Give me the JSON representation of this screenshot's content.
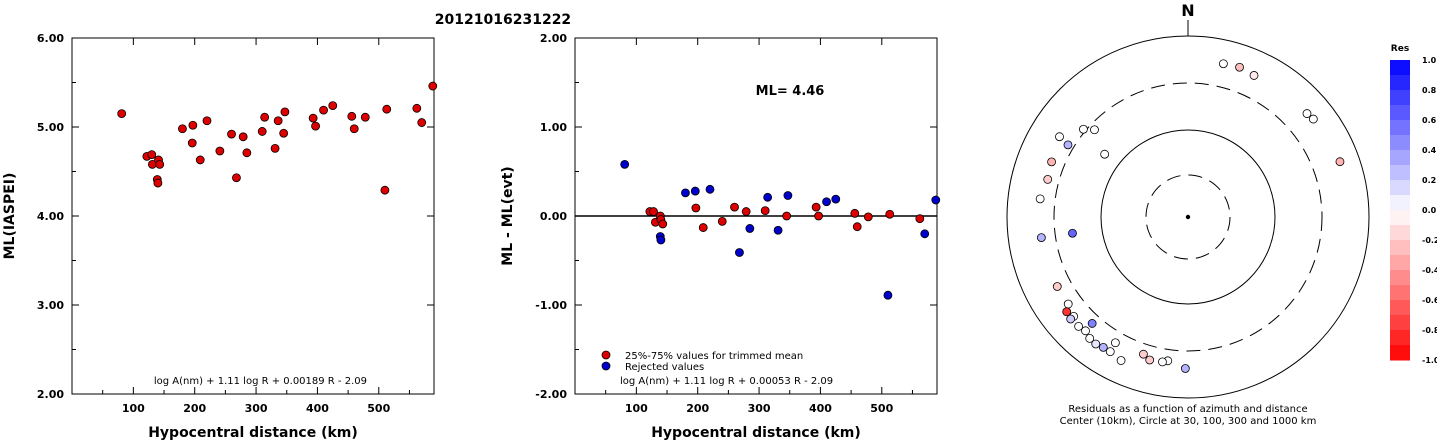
{
  "event_title": "20121016231222",
  "chart_data": [
    {
      "type": "scatter",
      "ylabel": "ML(IASPEI)",
      "xlabel": "Hypocentral distance (km)",
      "xlim": [
        0,
        590
      ],
      "ylim": [
        2.0,
        6.0
      ],
      "x_ticks": [
        "100",
        "200",
        "300",
        "400",
        "500"
      ],
      "y_ticks": [
        "2.00",
        "3.00",
        "4.00",
        "5.00",
        "6.00"
      ],
      "formula": "log A(nm) + 1.11 log R + 0.00189 R - 2.09",
      "point_color": "#dd0000",
      "points": [
        [
          81,
          5.15
        ],
        [
          122,
          4.67
        ],
        [
          130,
          4.69
        ],
        [
          131,
          4.58
        ],
        [
          139,
          4.41
        ],
        [
          140,
          4.37
        ],
        [
          141,
          4.63
        ],
        [
          143,
          4.58
        ],
        [
          180,
          4.98
        ],
        [
          196,
          4.82
        ],
        [
          197,
          5.02
        ],
        [
          209,
          4.63
        ],
        [
          220,
          5.07
        ],
        [
          241,
          4.73
        ],
        [
          260,
          4.92
        ],
        [
          268,
          4.43
        ],
        [
          279,
          4.89
        ],
        [
          285,
          4.71
        ],
        [
          310,
          4.95
        ],
        [
          314,
          5.11
        ],
        [
          331,
          4.76
        ],
        [
          336,
          5.07
        ],
        [
          345,
          4.93
        ],
        [
          347,
          5.17
        ],
        [
          393,
          5.1
        ],
        [
          397,
          5.01
        ],
        [
          410,
          5.19
        ],
        [
          425,
          5.24
        ],
        [
          456,
          5.12
        ],
        [
          460,
          4.98
        ],
        [
          478,
          5.11
        ],
        [
          510,
          4.29
        ],
        [
          513,
          5.2
        ],
        [
          562,
          5.21
        ],
        [
          570,
          5.05
        ],
        [
          588,
          5.46
        ]
      ]
    },
    {
      "type": "scatter",
      "ylabel": "ML - ML(evt)",
      "xlabel": "Hypocentral distance (km)",
      "xlim": [
        0,
        590
      ],
      "ylim": [
        -2.0,
        2.0
      ],
      "x_ticks": [
        "100",
        "200",
        "300",
        "400",
        "500"
      ],
      "y_ticks": [
        "-2.00",
        "-1.00",
        "0.00",
        "1.00",
        "2.00"
      ],
      "ml_label": "ML= 4.46",
      "formula": "log A(nm) + 1.11 log R + 0.00053 R - 2.09",
      "legend": [
        "25%-75% values for trimmed mean",
        "Rejected values"
      ],
      "series": [
        {
          "name": "25%-75% values for trimmed mean",
          "color": "#dd0000",
          "points": [
            [
              122,
              0.05
            ],
            [
              128,
              0.05
            ],
            [
              131,
              -0.07
            ],
            [
              139,
              0.0
            ],
            [
              140,
              -0.04
            ],
            [
              143,
              -0.09
            ],
            [
              197,
              0.09
            ],
            [
              209,
              -0.13
            ],
            [
              240,
              -0.06
            ],
            [
              260,
              0.1
            ],
            [
              279,
              0.05
            ],
            [
              310,
              0.06
            ],
            [
              345,
              0.0
            ],
            [
              393,
              0.1
            ],
            [
              397,
              0.0
            ],
            [
              456,
              0.03
            ],
            [
              460,
              -0.12
            ],
            [
              478,
              -0.01
            ],
            [
              513,
              0.02
            ],
            [
              562,
              -0.03
            ]
          ]
        },
        {
          "name": "Rejected values",
          "color": "#0000cc",
          "points": [
            [
              81,
              0.58
            ],
            [
              139,
              -0.23
            ],
            [
              140,
              -0.27
            ],
            [
              180,
              0.26
            ],
            [
              196,
              0.28
            ],
            [
              220,
              0.3
            ],
            [
              268,
              -0.41
            ],
            [
              285,
              -0.14
            ],
            [
              314,
              0.21
            ],
            [
              331,
              -0.16
            ],
            [
              347,
              0.23
            ],
            [
              410,
              0.16
            ],
            [
              425,
              0.19
            ],
            [
              510,
              -0.89
            ],
            [
              570,
              -0.2
            ],
            [
              588,
              0.18
            ]
          ]
        }
      ]
    },
    {
      "type": "scatter",
      "north_label": "N",
      "caption_line1": "Residuals as a function of azimuth and distance",
      "caption_line2": "Center (10km), Circle at 30, 100, 300 and 1000 km",
      "colorbar_title": "Res",
      "colorbar_ticks": [
        "1.0",
        "0.8",
        "0.6",
        "0.4",
        "0.2",
        "0.0",
        "-0.2",
        "-0.4",
        "-0.6",
        "-0.8",
        "-1.0"
      ],
      "rings_km": [
        30,
        100,
        300,
        1000
      ],
      "stations": [
        {
          "az": 13,
          "dist": 545,
          "res": 0.0
        },
        {
          "az": 25,
          "dist": 530,
          "res": -0.08
        },
        {
          "az": 49,
          "dist": 550,
          "res": 0.0
        },
        {
          "az": 52,
          "dist": 570,
          "res": 0.0
        },
        {
          "az": 70,
          "dist": 610,
          "res": -0.3
        },
        {
          "az": 19,
          "dist": 560,
          "res": -0.25
        },
        {
          "az": 292,
          "dist": 420,
          "res": -0.3
        },
        {
          "az": 302,
          "dist": 470,
          "res": 0.0
        },
        {
          "az": 301,
          "dist": 350,
          "res": 0.3
        },
        {
          "az": 310,
          "dist": 320,
          "res": 0.0
        },
        {
          "az": 313,
          "dist": 260,
          "res": 0.0
        },
        {
          "az": 285,
          "dist": 400,
          "res": -0.2
        },
        {
          "az": 277,
          "dist": 440,
          "res": 0.0
        },
        {
          "az": 262,
          "dist": 430,
          "res": 0.3
        },
        {
          "az": 242,
          "dist": 430,
          "res": -0.2
        },
        {
          "az": 234,
          "dist": 430,
          "res": 0.0
        },
        {
          "az": 229,
          "dist": 470,
          "res": 0.0
        },
        {
          "az": 222,
          "dist": 490,
          "res": 0.0
        },
        {
          "az": 232,
          "dist": 500,
          "res": -0.8
        },
        {
          "az": 229,
          "dist": 520,
          "res": 0.2
        },
        {
          "az": 225,
          "dist": 510,
          "res": 0.0
        },
        {
          "az": 219,
          "dist": 530,
          "res": 0.0
        },
        {
          "az": 216,
          "dist": 540,
          "res": 0.1
        },
        {
          "az": 213,
          "dist": 520,
          "res": 0.3
        },
        {
          "az": 210,
          "dist": 520,
          "res": 0.0
        },
        {
          "az": 205,
          "dist": 560,
          "res": 0.0
        },
        {
          "az": 222,
          "dist": 380,
          "res": 0.5
        },
        {
          "az": 210,
          "dist": 400,
          "res": 0.0
        },
        {
          "az": 195,
          "dist": 430,
          "res": -0.2
        },
        {
          "az": 198,
          "dist": 390,
          "res": -0.2
        },
        {
          "az": 188,
          "dist": 400,
          "res": 0.0
        },
        {
          "az": 190,
          "dist": 420,
          "res": 0.0
        },
        {
          "az": 181,
          "dist": 470,
          "res": 0.3
        },
        {
          "az": 262,
          "dist": 200,
          "res": 0.6
        },
        {
          "az": 307,
          "dist": 150,
          "res": 0.0
        }
      ]
    }
  ]
}
